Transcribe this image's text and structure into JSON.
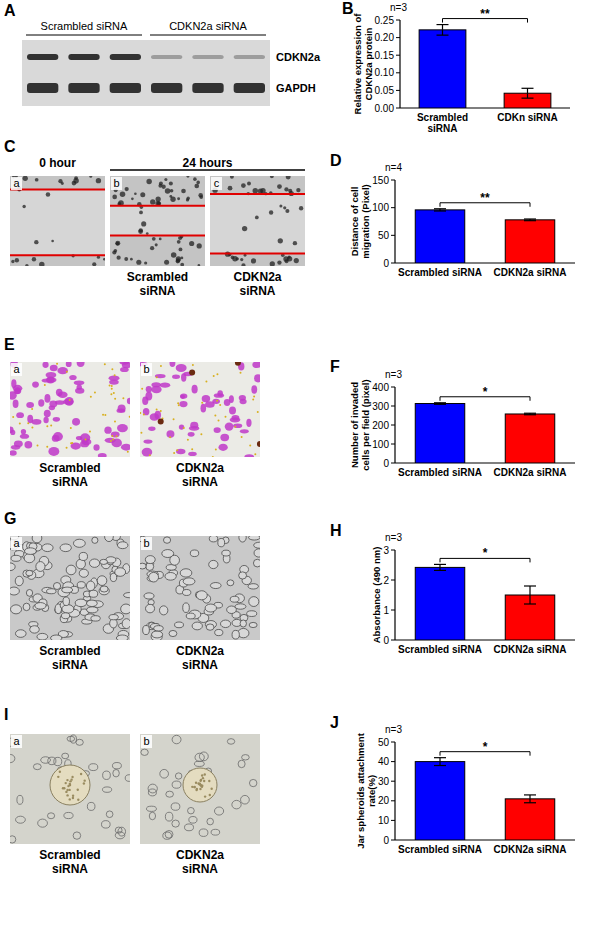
{
  "blot": {
    "panel": "A",
    "groups": [
      "Scrambled siRNA",
      "CDKN2a siRNA"
    ],
    "bands": [
      "CDKN2a",
      "GAPDH"
    ]
  },
  "chart_data": [
    {
      "panel": "B",
      "type": "bar",
      "subtitle": "n=3",
      "y_label": "Relative expression of CDKN2a protein",
      "categories": [
        "Scrambled siRNA",
        "CDKn siRNA"
      ],
      "values": [
        0.222,
        0.042
      ],
      "errors": [
        0.015,
        0.014
      ],
      "colors": [
        "#0000ff",
        "#ff0000"
      ],
      "ylim": [
        0,
        0.25
      ],
      "yticks": [
        {
          "value": 0,
          "label": "0.00"
        },
        {
          "value": 0.05,
          "label": "0.05"
        },
        {
          "value": 0.1,
          "label": "0.10"
        },
        {
          "value": 0.15,
          "label": "0.15"
        },
        {
          "value": 0.2,
          "label": "0.20"
        },
        {
          "value": 0.25,
          "label": "0.25"
        }
      ],
      "annotation": "**"
    },
    {
      "panel": "D",
      "type": "bar",
      "subtitle": "n=4",
      "y_label": "Distance of cell migration (Pixel)",
      "categories": [
        "Scrambled siRNA",
        "CDKN2a siRNA"
      ],
      "values": [
        96,
        78
      ],
      "errors": [
        2,
        1.5
      ],
      "colors": [
        "#0000ff",
        "#ff0000"
      ],
      "ylim": [
        0,
        150
      ],
      "yticks": [
        0,
        50,
        100,
        150
      ],
      "annotation": "**"
    },
    {
      "panel": "F",
      "type": "bar",
      "subtitle": "n=3",
      "y_label": "Number of invaded cells per field (pixel)",
      "categories": [
        "Scrambled siRNA",
        "CDKN2a siRNA"
      ],
      "values": [
        313,
        258
      ],
      "errors": [
        4,
        4
      ],
      "colors": [
        "#0000ff",
        "#ff0000"
      ],
      "ylim": [
        0,
        400
      ],
      "yticks": [
        0,
        100,
        200,
        300,
        400
      ],
      "annotation": "*"
    },
    {
      "panel": "H",
      "type": "bar",
      "subtitle": "n=3",
      "y_label": "Absorbance (490 nm)",
      "categories": [
        "Scrambled siRNA",
        "CDKN2a siRNA"
      ],
      "values": [
        2.42,
        1.5
      ],
      "errors": [
        0.1,
        0.3
      ],
      "colors": [
        "#0000ff",
        "#ff0000"
      ],
      "ylim": [
        0,
        3
      ],
      "yticks": [
        0,
        1,
        2,
        3
      ],
      "annotation": "*"
    },
    {
      "panel": "J",
      "type": "bar",
      "subtitle": "n=3",
      "y_label": "Jar spheroids attachment rate(%)",
      "categories": [
        "Scrambled siRNA",
        "CDKN2a siRNA"
      ],
      "values": [
        40,
        21
      ],
      "errors": [
        2,
        2
      ],
      "colors": [
        "#0000ff",
        "#ff0000"
      ],
      "ylim": [
        0,
        50
      ],
      "yticks": [
        0,
        10,
        20,
        30,
        40,
        50
      ],
      "annotation": "*"
    }
  ],
  "image_panels": [
    {
      "panel": "C",
      "kind": "wound",
      "time_labels": [
        "0 hour",
        "24 hours"
      ],
      "images": [
        {
          "tag": "a"
        },
        {
          "tag": "b",
          "caption": "Scrambled siRNA"
        },
        {
          "tag": "c",
          "caption": "CDKN2a siRNA"
        }
      ]
    },
    {
      "panel": "E",
      "kind": "invasion",
      "images": [
        {
          "tag": "a",
          "caption": "Scrambled siRNA"
        },
        {
          "tag": "b",
          "caption": "CDKN2a siRNA"
        }
      ]
    },
    {
      "panel": "G",
      "kind": "monolayer",
      "images": [
        {
          "tag": "a",
          "caption": "Scrambled siRNA"
        },
        {
          "tag": "b",
          "caption": "CDKN2a siRNA"
        }
      ]
    },
    {
      "panel": "I",
      "kind": "spheroid",
      "images": [
        {
          "tag": "a",
          "caption": "Scrambled siRNA"
        },
        {
          "tag": "b",
          "caption": "CDKN2a siRNA"
        }
      ]
    }
  ]
}
